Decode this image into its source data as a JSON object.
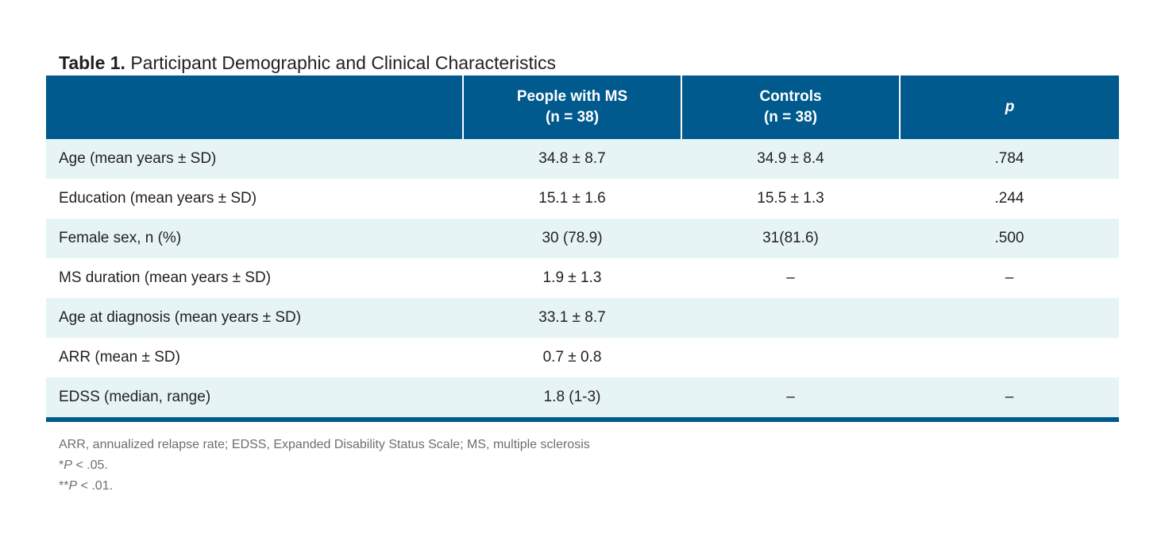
{
  "caption": {
    "label": "Table 1.",
    "text": "Participant Demographic and Clinical Characteristics"
  },
  "table": {
    "headers": [
      {
        "line1": "",
        "line2": ""
      },
      {
        "line1": "People with MS",
        "line2": "(n = 38)"
      },
      {
        "line1": "Controls",
        "line2": "(n = 38)"
      },
      {
        "line1": "p",
        "line2": ""
      }
    ],
    "rows": [
      [
        "Age (mean years ± SD)",
        "34.8 ± 8.7",
        "34.9 ± 8.4",
        ".784"
      ],
      [
        "Education (mean years ± SD)",
        "15.1 ± 1.6",
        "15.5 ± 1.3",
        ".244"
      ],
      [
        "Female sex, n (%)",
        "30 (78.9)",
        "31(81.6)",
        ".500"
      ],
      [
        "MS duration (mean years ± SD)",
        "1.9 ± 1.3",
        "–",
        "–"
      ],
      [
        "Age at diagnosis (mean years ± SD)",
        "33.1 ± 8.7",
        "",
        ""
      ],
      [
        "ARR (mean ± SD)",
        "0.7 ± 0.8",
        "",
        ""
      ],
      [
        "EDSS (median, range)",
        "1.8 (1-3)",
        "–",
        "–"
      ]
    ]
  },
  "footnotes": {
    "abbreviations": "ARR, annualized relapse rate; EDSS, Expanded Disability Status Scale; MS, multiple sclerosis",
    "note1_marker": "*",
    "note1_symbol": "P",
    "note1_text": " < .05.",
    "note2_marker": "**",
    "note2_symbol": "P",
    "note2_text": " < .01."
  },
  "colors": {
    "header_bg": "#005a8e",
    "stripe_bg": "#e7f4f5",
    "footnote_text": "#6d6e71"
  }
}
